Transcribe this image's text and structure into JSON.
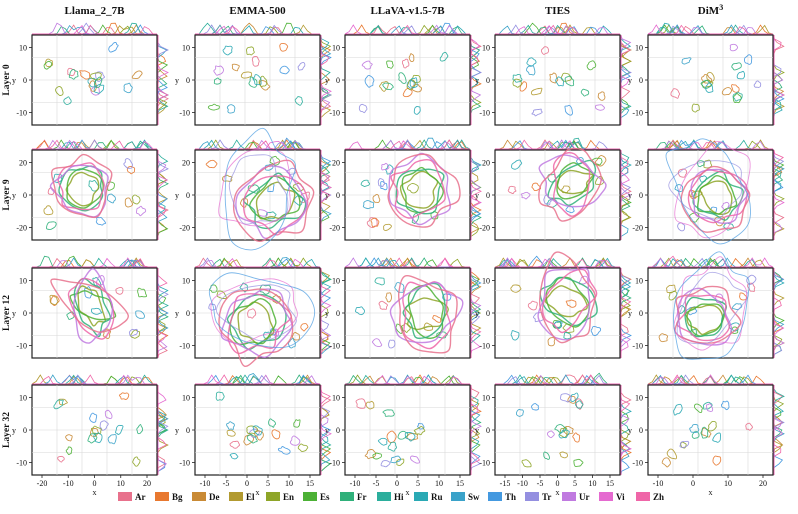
{
  "chart_data": {
    "type": "contour",
    "columns": [
      "Llama_2_7B",
      "EMMA-500",
      "LLaVA-v1.5-7B",
      "TIES",
      "DiM"
    ],
    "dim_superscript": "3",
    "rows": [
      "Layer 0",
      "Layer 9",
      "Layer 12",
      "Layer 32"
    ],
    "xlabel": "x",
    "ylabel": "y",
    "y_ticks": {
      "Layer 0": [
        10,
        0,
        -10
      ],
      "Layer 9": [
        20,
        0,
        -20
      ],
      "Layer 12": [
        10,
        0,
        -10
      ],
      "Layer 32": [
        10,
        0,
        -10
      ]
    },
    "x_ticks_bottom": [
      [
        "-20",
        "-10",
        "0",
        "10",
        "20"
      ],
      [
        "-10",
        "-5",
        "0",
        "5",
        "10",
        "15"
      ],
      [
        "-10",
        "-5",
        "0",
        "5",
        "10",
        "15"
      ],
      [
        "-15",
        "-10",
        "-5",
        "0",
        "5",
        "10",
        "15"
      ],
      [
        "-10",
        "0",
        "10",
        "20"
      ]
    ],
    "legend": [
      {
        "name": "Ar",
        "color": "#e8718c"
      },
      {
        "name": "Bg",
        "color": "#e8782f"
      },
      {
        "name": "De",
        "color": "#c98a35"
      },
      {
        "name": "El",
        "color": "#b29a30"
      },
      {
        "name": "En",
        "color": "#8ea528"
      },
      {
        "name": "Es",
        "color": "#4cb135"
      },
      {
        "name": "Fr",
        "color": "#2fb07a"
      },
      {
        "name": "Hi",
        "color": "#2bae9c"
      },
      {
        "name": "Ru",
        "color": "#2aa9b4"
      },
      {
        "name": "Sw",
        "color": "#3aa2c9"
      },
      {
        "name": "Th",
        "color": "#4499e0"
      },
      {
        "name": "Tr",
        "color": "#948fe0"
      },
      {
        "name": "Ur",
        "color": "#c07ae0"
      },
      {
        "name": "Vi",
        "color": "#e56ad0"
      },
      {
        "name": "Zh",
        "color": "#ef66a8"
      }
    ]
  }
}
